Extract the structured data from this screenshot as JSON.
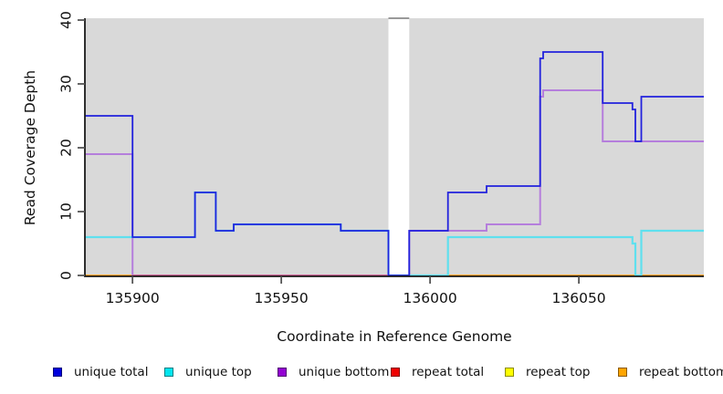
{
  "chart_data": {
    "type": "line",
    "subtype": "step",
    "title": "",
    "xlabel": "Coordinate in Reference Genome",
    "ylabel": "Read Coverage Depth",
    "xlim": [
      135884,
      136092
    ],
    "ylim": [
      0,
      40
    ],
    "x_ticks": [
      135900,
      135950,
      136000,
      136050
    ],
    "y_ticks": [
      0,
      10,
      20,
      30,
      40
    ],
    "grid": false,
    "legend_position": "bottom",
    "plot_bg_color": "#D9D9D9",
    "axis_color": "#1a1a1a",
    "tick_color": "#555555",
    "masked_region": {
      "x1": 135986,
      "x2": 135993,
      "color": "#FFFFFF",
      "cap_color": "#999999"
    },
    "zero_overlap_segment": {
      "x1": 135900,
      "x2": 135986,
      "value": 0,
      "color": "#D4547C"
    },
    "z_order": [
      "repeat total",
      "repeat top",
      "repeat bottom",
      "unique bottom",
      "__overlap__",
      "unique top",
      "unique total"
    ],
    "series": [
      {
        "name": "unique total",
        "legend_color": "#0000DD",
        "line_color": "#2222DD",
        "line_width": 1.8,
        "points": [
          [
            135884,
            25
          ],
          [
            135900,
            6
          ],
          [
            135921,
            13
          ],
          [
            135928,
            7
          ],
          [
            135934,
            8
          ],
          [
            135970,
            7
          ],
          [
            135986,
            0
          ],
          [
            135993,
            7
          ],
          [
            136006,
            13
          ],
          [
            136019,
            14
          ],
          [
            136037,
            34
          ],
          [
            136038,
            35
          ],
          [
            136058,
            27
          ],
          [
            136068,
            26
          ],
          [
            136069,
            21
          ],
          [
            136071,
            28
          ],
          [
            136092,
            28
          ]
        ]
      },
      {
        "name": "unique top",
        "legend_color": "#00E5EE",
        "line_color": "#5FE0EE",
        "line_width": 2.2,
        "points": [
          [
            135884,
            6
          ],
          [
            135921,
            13
          ],
          [
            135928,
            7
          ],
          [
            135934,
            8
          ],
          [
            135970,
            7
          ],
          [
            135986,
            0
          ],
          [
            136006,
            6
          ],
          [
            136068,
            5
          ],
          [
            136069,
            0
          ],
          [
            136071,
            7
          ],
          [
            136092,
            7
          ]
        ]
      },
      {
        "name": "unique bottom",
        "legend_color": "#9400D3",
        "line_color": "#B57EDC",
        "line_width": 2.0,
        "points": [
          [
            135884,
            19
          ],
          [
            135900,
            0
          ],
          [
            135993,
            7
          ],
          [
            136019,
            8
          ],
          [
            136037,
            28
          ],
          [
            136038,
            29
          ],
          [
            136058,
            21
          ],
          [
            136092,
            21
          ]
        ]
      },
      {
        "name": "repeat total",
        "legend_color": "#EE0000",
        "line_color": "#DD2222",
        "line_width": 1.4,
        "points": [
          [
            135884,
            0
          ],
          [
            136092,
            0
          ]
        ]
      },
      {
        "name": "repeat top",
        "legend_color": "#FFFF00",
        "line_color": "#EEEE00",
        "line_width": 1.4,
        "points": [
          [
            135884,
            0
          ],
          [
            136092,
            0
          ]
        ]
      },
      {
        "name": "repeat bottom",
        "legend_color": "#FFA500",
        "line_color": "#FFA020",
        "line_width": 1.6,
        "points": [
          [
            135884,
            0
          ],
          [
            136092,
            0
          ]
        ]
      }
    ]
  }
}
